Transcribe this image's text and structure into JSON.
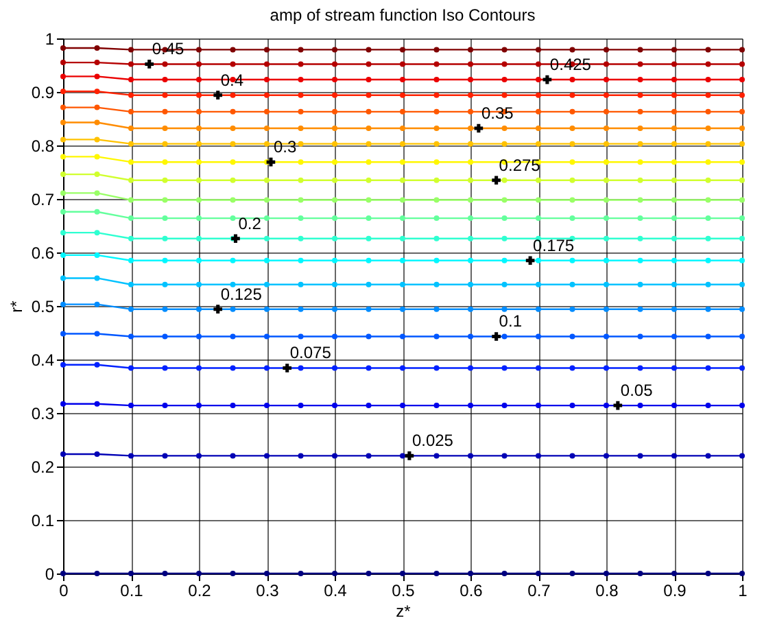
{
  "chart_data": {
    "type": "line",
    "title": "amp of stream function Iso Contours",
    "xlabel": "z*",
    "ylabel": "r*",
    "x": [
      0,
      0.05,
      0.1,
      0.15,
      0.2,
      0.25,
      0.3,
      0.35,
      0.4,
      0.45,
      0.5,
      0.55,
      0.6,
      0.65,
      0.7,
      0.75,
      0.8,
      0.85,
      0.9,
      0.95,
      1
    ],
    "xlim": [
      0,
      1
    ],
    "ylim": [
      0,
      1
    ],
    "xticks": [
      0,
      0.1,
      0.2,
      0.3,
      0.4,
      0.5,
      0.6,
      0.7,
      0.8,
      0.9,
      1
    ],
    "yticks": [
      0,
      0.1,
      0.2,
      0.3,
      0.4,
      0.5,
      0.6,
      0.7,
      0.8,
      0.9,
      1
    ],
    "grid": true,
    "legend": false,
    "marker": "circle",
    "line_style": "solid",
    "series": [
      {
        "color": "#000080",
        "values": [
          0,
          0,
          0,
          0,
          0,
          0,
          0,
          0,
          0,
          0,
          0,
          0,
          0,
          0,
          0,
          0,
          0,
          0,
          0,
          0,
          0
        ]
      },
      {
        "color": "#0000b5",
        "values": [
          0.223,
          0.223,
          0.22,
          0.22,
          0.22,
          0.22,
          0.22,
          0.22,
          0.22,
          0.22,
          0.22,
          0.22,
          0.22,
          0.22,
          0.22,
          0.22,
          0.22,
          0.22,
          0.22,
          0.22,
          0.22
        ]
      },
      {
        "color": "#0000eb",
        "values": [
          0.317,
          0.317,
          0.314,
          0.314,
          0.314,
          0.314,
          0.314,
          0.314,
          0.314,
          0.314,
          0.314,
          0.314,
          0.314,
          0.314,
          0.314,
          0.314,
          0.314,
          0.314,
          0.314,
          0.314,
          0.314
        ]
      },
      {
        "color": "#0021ff",
        "values": [
          0.39,
          0.39,
          0.384,
          0.384,
          0.384,
          0.384,
          0.384,
          0.384,
          0.384,
          0.384,
          0.384,
          0.384,
          0.384,
          0.384,
          0.384,
          0.384,
          0.384,
          0.384,
          0.384,
          0.384,
          0.384
        ]
      },
      {
        "color": "#0057ff",
        "values": [
          0.448,
          0.448,
          0.443,
          0.443,
          0.443,
          0.443,
          0.443,
          0.443,
          0.443,
          0.443,
          0.443,
          0.443,
          0.443,
          0.443,
          0.443,
          0.443,
          0.443,
          0.443,
          0.443,
          0.443,
          0.443
        ]
      },
      {
        "color": "#008cff",
        "values": [
          0.503,
          0.503,
          0.494,
          0.494,
          0.494,
          0.494,
          0.494,
          0.494,
          0.494,
          0.494,
          0.494,
          0.494,
          0.494,
          0.494,
          0.494,
          0.494,
          0.494,
          0.494,
          0.494,
          0.494,
          0.494
        ]
      },
      {
        "color": "#00c2ff",
        "values": [
          0.552,
          0.552,
          0.54,
          0.54,
          0.54,
          0.54,
          0.54,
          0.54,
          0.54,
          0.54,
          0.54,
          0.54,
          0.54,
          0.54,
          0.54,
          0.54,
          0.54,
          0.54,
          0.54,
          0.54,
          0.54
        ]
      },
      {
        "color": "#00f7ff",
        "values": [
          0.595,
          0.595,
          0.585,
          0.585,
          0.585,
          0.585,
          0.585,
          0.585,
          0.585,
          0.585,
          0.585,
          0.585,
          0.585,
          0.585,
          0.585,
          0.585,
          0.585,
          0.585,
          0.585,
          0.585,
          0.585
        ]
      },
      {
        "color": "#2effd1",
        "values": [
          0.637,
          0.637,
          0.626,
          0.626,
          0.626,
          0.626,
          0.626,
          0.626,
          0.626,
          0.626,
          0.626,
          0.626,
          0.626,
          0.626,
          0.626,
          0.626,
          0.626,
          0.626,
          0.626,
          0.626,
          0.626
        ]
      },
      {
        "color": "#63ff9c",
        "values": [
          0.676,
          0.676,
          0.664,
          0.664,
          0.664,
          0.664,
          0.664,
          0.664,
          0.664,
          0.664,
          0.664,
          0.664,
          0.664,
          0.664,
          0.664,
          0.664,
          0.664,
          0.664,
          0.664,
          0.664,
          0.664
        ]
      },
      {
        "color": "#99ff66",
        "values": [
          0.711,
          0.711,
          0.698,
          0.698,
          0.698,
          0.698,
          0.698,
          0.698,
          0.698,
          0.698,
          0.698,
          0.698,
          0.698,
          0.698,
          0.698,
          0.698,
          0.698,
          0.698,
          0.698,
          0.698,
          0.698
        ]
      },
      {
        "color": "#d1ff2e",
        "values": [
          0.746,
          0.746,
          0.735,
          0.735,
          0.735,
          0.735,
          0.735,
          0.735,
          0.735,
          0.735,
          0.735,
          0.735,
          0.735,
          0.735,
          0.735,
          0.735,
          0.735,
          0.735,
          0.735,
          0.735,
          0.735
        ]
      },
      {
        "color": "#fff700",
        "values": [
          0.779,
          0.779,
          0.769,
          0.769,
          0.769,
          0.769,
          0.769,
          0.769,
          0.769,
          0.769,
          0.769,
          0.769,
          0.769,
          0.769,
          0.769,
          0.769,
          0.769,
          0.769,
          0.769,
          0.769,
          0.769
        ]
      },
      {
        "color": "#ffc200",
        "values": [
          0.811,
          0.811,
          0.803,
          0.803,
          0.803,
          0.803,
          0.803,
          0.803,
          0.803,
          0.803,
          0.803,
          0.803,
          0.803,
          0.803,
          0.803,
          0.803,
          0.803,
          0.803,
          0.803,
          0.803,
          0.803
        ]
      },
      {
        "color": "#ff8c00",
        "values": [
          0.843,
          0.843,
          0.832,
          0.832,
          0.832,
          0.832,
          0.832,
          0.832,
          0.832,
          0.832,
          0.832,
          0.832,
          0.832,
          0.832,
          0.832,
          0.832,
          0.832,
          0.832,
          0.832,
          0.832,
          0.832
        ]
      },
      {
        "color": "#ff5700",
        "values": [
          0.871,
          0.871,
          0.863,
          0.863,
          0.863,
          0.863,
          0.863,
          0.863,
          0.863,
          0.863,
          0.863,
          0.863,
          0.863,
          0.863,
          0.863,
          0.863,
          0.863,
          0.863,
          0.863,
          0.863,
          0.863
        ]
      },
      {
        "color": "#ff2100",
        "values": [
          0.901,
          0.901,
          0.894,
          0.894,
          0.894,
          0.894,
          0.894,
          0.894,
          0.894,
          0.894,
          0.894,
          0.894,
          0.894,
          0.894,
          0.894,
          0.894,
          0.894,
          0.894,
          0.894,
          0.894,
          0.894
        ]
      },
      {
        "color": "#eb0000",
        "values": [
          0.929,
          0.929,
          0.923,
          0.923,
          0.923,
          0.923,
          0.923,
          0.923,
          0.923,
          0.923,
          0.923,
          0.923,
          0.923,
          0.923,
          0.923,
          0.923,
          0.923,
          0.923,
          0.923,
          0.923,
          0.923
        ]
      },
      {
        "color": "#b50000",
        "values": [
          0.955,
          0.955,
          0.952,
          0.952,
          0.952,
          0.952,
          0.952,
          0.952,
          0.952,
          0.952,
          0.952,
          0.952,
          0.952,
          0.952,
          0.952,
          0.952,
          0.952,
          0.952,
          0.952,
          0.952,
          0.952
        ]
      },
      {
        "color": "#800000",
        "values": [
          0.982,
          0.982,
          0.979,
          0.979,
          0.979,
          0.979,
          0.979,
          0.979,
          0.979,
          0.979,
          0.979,
          0.979,
          0.979,
          0.979,
          0.979,
          0.979,
          0.979,
          0.979,
          0.979,
          0.979,
          0.979
        ]
      }
    ],
    "annotations": [
      {
        "text": "0.025",
        "x": 0.51,
        "y": 0.22
      },
      {
        "text": "0.05",
        "x": 0.817,
        "y": 0.314
      },
      {
        "text": "0.075",
        "x": 0.33,
        "y": 0.384
      },
      {
        "text": "0.1",
        "x": 0.638,
        "y": 0.443
      },
      {
        "text": "0.125",
        "x": 0.228,
        "y": 0.494
      },
      {
        "text": "0.175",
        "x": 0.688,
        "y": 0.585
      },
      {
        "text": "0.2",
        "x": 0.254,
        "y": 0.626
      },
      {
        "text": "0.275",
        "x": 0.638,
        "y": 0.735
      },
      {
        "text": "0.3",
        "x": 0.306,
        "y": 0.769
      },
      {
        "text": "0.35",
        "x": 0.612,
        "y": 0.832
      },
      {
        "text": "0.4",
        "x": 0.228,
        "y": 0.894
      },
      {
        "text": "0.425",
        "x": 0.713,
        "y": 0.923
      },
      {
        "text": "0.45",
        "x": 0.127,
        "y": 0.952
      }
    ]
  }
}
